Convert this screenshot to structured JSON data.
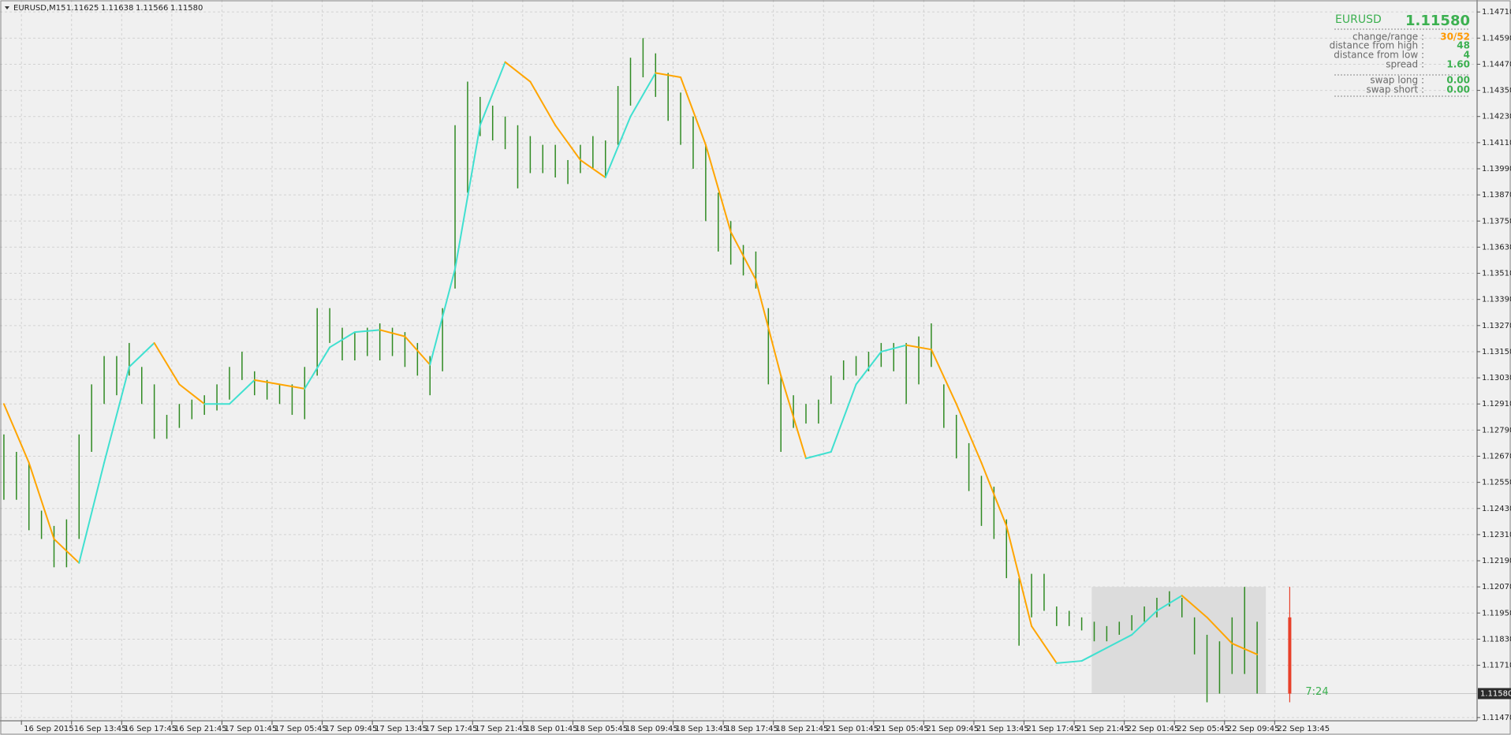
{
  "chart_data": {
    "type": "ohlc",
    "title": "EURUSD,M15",
    "header_prices": [
      "1.11625",
      "1.11638",
      "1.11566",
      "1.11580"
    ],
    "bar_color": "#2f8a22",
    "x": [
      0,
      1,
      2,
      3,
      4,
      5,
      6,
      7,
      8,
      9,
      10,
      11,
      12,
      13,
      14,
      15,
      16,
      17,
      18,
      19,
      20,
      21,
      22,
      23,
      24,
      25,
      26,
      27,
      28,
      29,
      30,
      31,
      32,
      33,
      34,
      35,
      36,
      37,
      38,
      39,
      40,
      41,
      42,
      43,
      44,
      45,
      46,
      47,
      48,
      49,
      50,
      51,
      52,
      53,
      54,
      55,
      56,
      57,
      58,
      59,
      60,
      61,
      62,
      63,
      64,
      65,
      66,
      67,
      68,
      69,
      70,
      71,
      72,
      73,
      74,
      75,
      76,
      77,
      78,
      79,
      80,
      81,
      82,
      83,
      84,
      85,
      86,
      87,
      88,
      89,
      90,
      91,
      92,
      93,
      94,
      95,
      96,
      97,
      98,
      99,
      100
    ],
    "high": [
      1.1277,
      1.1269,
      1.1264,
      1.1242,
      1.1235,
      1.1238,
      1.1277,
      1.13,
      1.1313,
      1.1313,
      1.1319,
      1.1308,
      1.13,
      1.1286,
      1.1291,
      1.1293,
      1.1295,
      1.13,
      1.1308,
      1.1315,
      1.1306,
      1.1302,
      1.13,
      1.13,
      1.1308,
      1.1335,
      1.1335,
      1.1326,
      1.1324,
      1.1326,
      1.1328,
      1.1326,
      1.1324,
      1.1319,
      1.1313,
      1.1335,
      1.1419,
      1.1439,
      1.1432,
      1.1428,
      1.1423,
      1.1419,
      1.1414,
      1.141,
      1.141,
      1.1403,
      1.141,
      1.1414,
      1.1412,
      1.1437,
      1.145,
      1.1459,
      1.1452,
      1.1443,
      1.1434,
      1.1423,
      1.141,
      1.1388,
      1.1375,
      1.1364,
      1.1361,
      1.1335,
      1.1304,
      1.1295,
      1.1291,
      1.1293,
      1.1304,
      1.1311,
      1.1313,
      1.1315,
      1.1319,
      1.1319,
      1.1319,
      1.1322,
      1.1328,
      1.13,
      1.1286,
      1.1273,
      1.1258,
      1.1253,
      1.1238,
      1.1211,
      1.1213,
      1.1213,
      1.1198,
      1.1196,
      1.1193,
      1.1191,
      1.1189,
      1.1191,
      1.1194,
      1.1198,
      1.1202,
      1.1205,
      1.1202,
      1.1193,
      1.1185,
      1.1182,
      1.1193,
      1.1207,
      1.1191
    ],
    "low": [
      1.1247,
      1.1247,
      1.1233,
      1.1229,
      1.1216,
      1.1216,
      1.1229,
      1.1269,
      1.1291,
      1.1295,
      1.1304,
      1.1291,
      1.1275,
      1.1275,
      1.128,
      1.1284,
      1.1286,
      1.1288,
      1.1293,
      1.1302,
      1.1295,
      1.1293,
      1.1291,
      1.1286,
      1.1284,
      1.1304,
      1.1319,
      1.1311,
      1.1311,
      1.1313,
      1.1311,
      1.1313,
      1.1308,
      1.1304,
      1.1295,
      1.1306,
      1.1344,
      1.1388,
      1.1414,
      1.1412,
      1.1408,
      1.139,
      1.1397,
      1.1397,
      1.1395,
      1.1392,
      1.1397,
      1.1399,
      1.1395,
      1.141,
      1.1428,
      1.1441,
      1.1432,
      1.1421,
      1.141,
      1.1399,
      1.1375,
      1.1361,
      1.1355,
      1.135,
      1.1344,
      1.13,
      1.1269,
      1.128,
      1.1282,
      1.1282,
      1.1291,
      1.1302,
      1.1304,
      1.1306,
      1.1308,
      1.1306,
      1.1291,
      1.13,
      1.1308,
      1.128,
      1.1266,
      1.1251,
      1.1235,
      1.1229,
      1.1211,
      1.118,
      1.1193,
      1.1196,
      1.1189,
      1.1189,
      1.1187,
      1.1182,
      1.1182,
      1.1185,
      1.1187,
      1.1191,
      1.1193,
      1.1198,
      1.1193,
      1.1176,
      1.1154,
      1.1158,
      1.1167,
      1.1167,
      1.1158
    ],
    "ma": {
      "rising_color": "#40e0d0",
      "falling_color": "#ffa500",
      "x": [
        0,
        2,
        4,
        6,
        8,
        10,
        12,
        14,
        16,
        18,
        20,
        22,
        24,
        26,
        28,
        30,
        32,
        34,
        36,
        38,
        40,
        42,
        44,
        46,
        48,
        50,
        52,
        54,
        56,
        58,
        60,
        62,
        64,
        66,
        68,
        70,
        72,
        74,
        76,
        78,
        80,
        82,
        84,
        86,
        88,
        90,
        92,
        94,
        96,
        98,
        100
      ],
      "values": [
        1.1291,
        1.1264,
        1.1229,
        1.1218,
        1.1264,
        1.1308,
        1.1319,
        1.13,
        1.1291,
        1.1291,
        1.1302,
        1.13,
        1.1298,
        1.1317,
        1.1324,
        1.1325,
        1.1322,
        1.1309,
        1.1353,
        1.1419,
        1.1448,
        1.1439,
        1.1419,
        1.1403,
        1.1395,
        1.1423,
        1.1443,
        1.1441,
        1.141,
        1.137,
        1.1348,
        1.1304,
        1.1266,
        1.1269,
        1.13,
        1.1315,
        1.1318,
        1.1316,
        1.1291,
        1.1264,
        1.1235,
        1.1189,
        1.1172,
        1.1173,
        1.1179,
        1.1185,
        1.1196,
        1.1203,
        1.1193,
        1.1181,
        1.1176
      ]
    },
    "range_box": {
      "x": [
        86.8,
        100.7
      ],
      "y": [
        1.1158,
        1.1207
      ],
      "color": "#dcdcdc"
    },
    "current_bar": {
      "x": 102.6,
      "high": 1.1207,
      "low": 1.1154,
      "open": 1.1193,
      "close": 1.1158,
      "color": "#e8402a"
    },
    "timer": "7:24",
    "current_price": {
      "value": 1.1158,
      "label": "1.11580"
    },
    "xlim": [
      -0.31,
      117.55
    ],
    "ylim": [
      1.11455,
      1.14765
    ],
    "grid": true,
    "xticks": [
      {
        "value": 1.4,
        "label": "16 Sep 2015"
      },
      {
        "value": 5.4,
        "label": "16 Sep 13:45"
      },
      {
        "value": 9.4,
        "label": "16 Sep 17:45"
      },
      {
        "value": 13.4,
        "label": "16 Sep 21:45"
      },
      {
        "value": 17.4,
        "label": "17 Sep 01:45"
      },
      {
        "value": 21.4,
        "label": "17 Sep 05:45"
      },
      {
        "value": 25.4,
        "label": "17 Sep 09:45"
      },
      {
        "value": 29.4,
        "label": "17 Sep 13:45"
      },
      {
        "value": 33.4,
        "label": "17 Sep 17:45"
      },
      {
        "value": 37.4,
        "label": "17 Sep 21:45"
      },
      {
        "value": 41.4,
        "label": "18 Sep 01:45"
      },
      {
        "value": 45.4,
        "label": "18 Sep 05:45"
      },
      {
        "value": 49.4,
        "label": "18 Sep 09:45"
      },
      {
        "value": 53.4,
        "label": "18 Sep 13:45"
      },
      {
        "value": 57.4,
        "label": "18 Sep 17:45"
      },
      {
        "value": 61.4,
        "label": "18 Sep 21:45"
      },
      {
        "value": 65.4,
        "label": "21 Sep 01:45"
      },
      {
        "value": 69.4,
        "label": "21 Sep 05:45"
      },
      {
        "value": 73.4,
        "label": "21 Sep 09:45"
      },
      {
        "value": 77.4,
        "label": "21 Sep 13:45"
      },
      {
        "value": 81.4,
        "label": "21 Sep 17:45"
      },
      {
        "value": 85.4,
        "label": "21 Sep 21:45"
      },
      {
        "value": 89.4,
        "label": "22 Sep 01:45"
      },
      {
        "value": 93.4,
        "label": "22 Sep 05:45"
      },
      {
        "value": 97.4,
        "label": "22 Sep 09:45"
      },
      {
        "value": 101.4,
        "label": "22 Sep 13:45"
      }
    ],
    "yticks": [
      {
        "value": 1.1471,
        "label": "1.14710"
      },
      {
        "value": 1.1459,
        "label": "1.14590"
      },
      {
        "value": 1.1447,
        "label": "1.14470"
      },
      {
        "value": 1.1435,
        "label": "1.14350"
      },
      {
        "value": 1.1423,
        "label": "1.14230"
      },
      {
        "value": 1.1411,
        "label": "1.14110"
      },
      {
        "value": 1.1399,
        "label": "1.13990"
      },
      {
        "value": 1.1387,
        "label": "1.13870"
      },
      {
        "value": 1.1375,
        "label": "1.13750"
      },
      {
        "value": 1.1363,
        "label": "1.13630"
      },
      {
        "value": 1.1351,
        "label": "1.13510"
      },
      {
        "value": 1.1339,
        "label": "1.13390"
      },
      {
        "value": 1.1327,
        "label": "1.13270"
      },
      {
        "value": 1.1315,
        "label": "1.13150"
      },
      {
        "value": 1.1303,
        "label": "1.13030"
      },
      {
        "value": 1.1291,
        "label": "1.12910"
      },
      {
        "value": 1.1279,
        "label": "1.12790"
      },
      {
        "value": 1.1267,
        "label": "1.12670"
      },
      {
        "value": 1.1255,
        "label": "1.12550"
      },
      {
        "value": 1.1243,
        "label": "1.12430"
      },
      {
        "value": 1.1231,
        "label": "1.12310"
      },
      {
        "value": 1.1219,
        "label": "1.12190"
      },
      {
        "value": 1.1207,
        "label": "1.12070"
      },
      {
        "value": 1.1195,
        "label": "1.11950"
      },
      {
        "value": 1.1183,
        "label": "1.11830"
      },
      {
        "value": 1.1171,
        "label": "1.11710"
      },
      {
        "value": 1.1147,
        "label": "1.11470"
      }
    ]
  },
  "info_panel": {
    "symbol": "EURUSD",
    "price": "1.11580",
    "rows": [
      {
        "label": "change/range :",
        "value": "30/52",
        "color": "#ff9900"
      },
      {
        "label": "distance from high :",
        "value": "48",
        "color": "#3cb050"
      },
      {
        "label": "distance from low :",
        "value": "4",
        "color": "#3cb050"
      },
      {
        "label": "spread :",
        "value": "1.60",
        "color": "#3cb050"
      },
      {
        "label": "swap long :",
        "value": "0.00",
        "color": "#3cb050"
      },
      {
        "label": "swap short :",
        "value": "0.00",
        "color": "#3cb050"
      }
    ]
  }
}
